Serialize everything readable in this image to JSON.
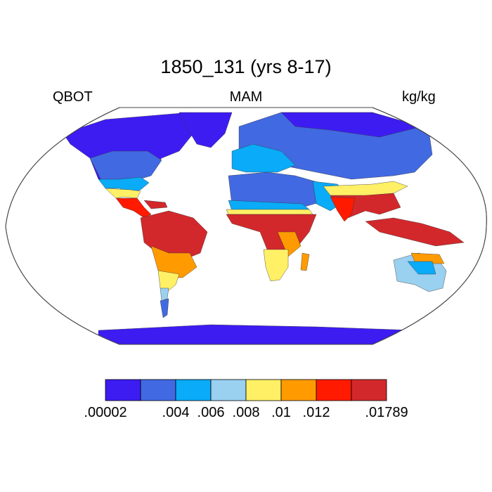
{
  "title": "1850_131 (yrs 8-17)",
  "left_label": "QBOT",
  "center_label": "MAM",
  "right_label": "kg/kg",
  "colorbar": {
    "colors": [
      "#3d1cf2",
      "#4169e1",
      "#0aabf8",
      "#9ad0f0",
      "#fff066",
      "#ff9b00",
      "#ff1a00",
      "#d3282b"
    ],
    "tick_labels": [
      ".00002",
      ".004",
      ".006",
      ".008",
      ".01",
      ".012",
      ".01789"
    ],
    "tick_boundaries": [
      0,
      2,
      3,
      4,
      5,
      6,
      8
    ]
  }
}
